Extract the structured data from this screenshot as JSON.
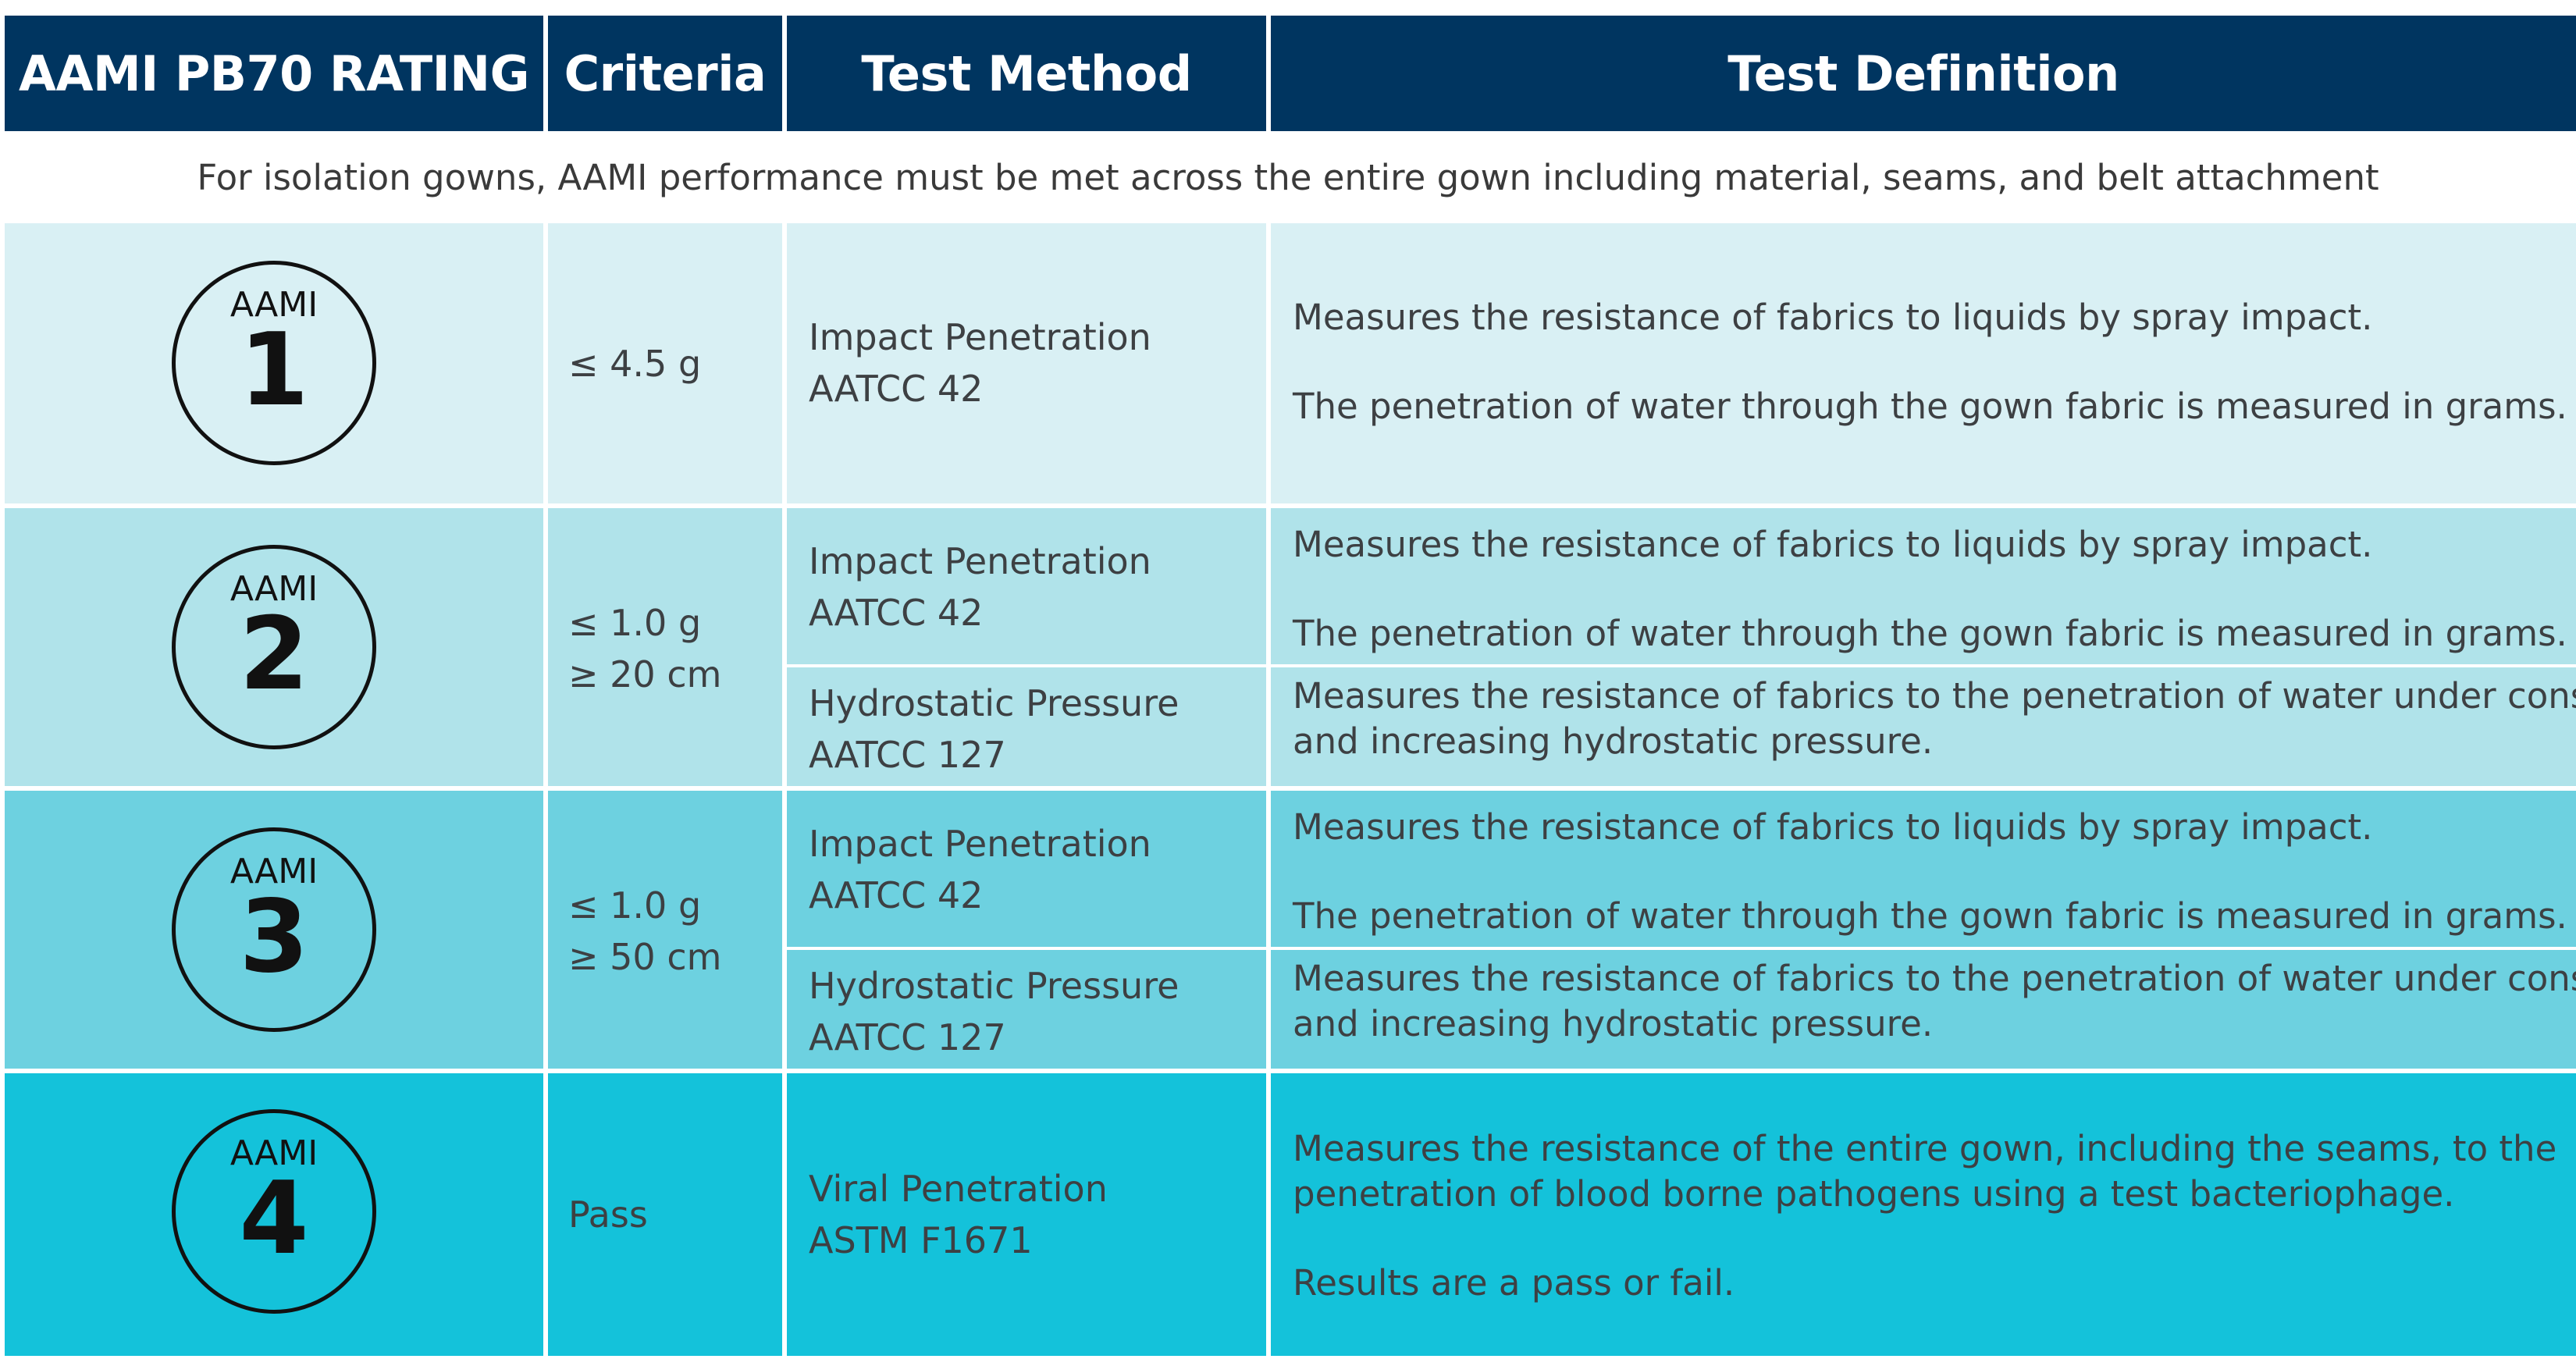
{
  "header": {
    "rating": "AAMI PB70 RATING",
    "criteria": "Criteria",
    "method": "Test Method",
    "definition": "Test Definition"
  },
  "note": "For isolation gowns, AAMI performance must be met across the entire gown including material, seams, and belt attachment",
  "colors": {
    "header_bg": "#003560",
    "level1_bg": "#d9f0f4",
    "level2_bg": "#b0e3ea",
    "level3_bg": "#6dd1e0",
    "level4_bg": "#14c2da"
  },
  "badge_label": "AAMI",
  "levels": [
    {
      "number": "1",
      "criteria": [
        "≤ 4.5 g"
      ],
      "tests": [
        {
          "name": "Impact Penetration",
          "standard": "AATCC 42",
          "definition": [
            "Measures the resistance of fabrics to liquids by spray impact.",
            "The penetration of water through the gown fabric is measured in grams."
          ]
        }
      ]
    },
    {
      "number": "2",
      "criteria": [
        "≤ 1.0 g",
        "≥ 20 cm"
      ],
      "tests": [
        {
          "name": "Impact Penetration",
          "standard": "AATCC 42",
          "definition": [
            "Measures the resistance of fabrics to liquids by spray impact.",
            "The penetration of water through the gown fabric is measured in grams."
          ]
        },
        {
          "name": "Hydrostatic Pressure",
          "standard": "AATCC 127",
          "definition": [
            "Measures the resistance of fabrics to the penetration of water under constant",
            "and increasing hydrostatic pressure."
          ]
        }
      ]
    },
    {
      "number": "3",
      "criteria": [
        "≤ 1.0 g",
        "≥ 50 cm"
      ],
      "tests": [
        {
          "name": "Impact Penetration",
          "standard": "AATCC 42",
          "definition": [
            "Measures the resistance of fabrics to liquids by spray impact.",
            "The penetration of water through the gown fabric is measured in grams."
          ]
        },
        {
          "name": "Hydrostatic Pressure",
          "standard": "AATCC 127",
          "definition": [
            "Measures the resistance of fabrics to the penetration of water under constant",
            "and increasing hydrostatic pressure."
          ]
        }
      ]
    },
    {
      "number": "4",
      "criteria": [
        "Pass"
      ],
      "tests": [
        {
          "name": "Viral Penetration",
          "standard": "ASTM F1671",
          "definition": [
            "Measures the resistance of the entire gown, including the seams, to the",
            "penetration of blood borne pathogens using a test bacteriophage.",
            "Results are a pass or fail."
          ]
        }
      ]
    }
  ]
}
